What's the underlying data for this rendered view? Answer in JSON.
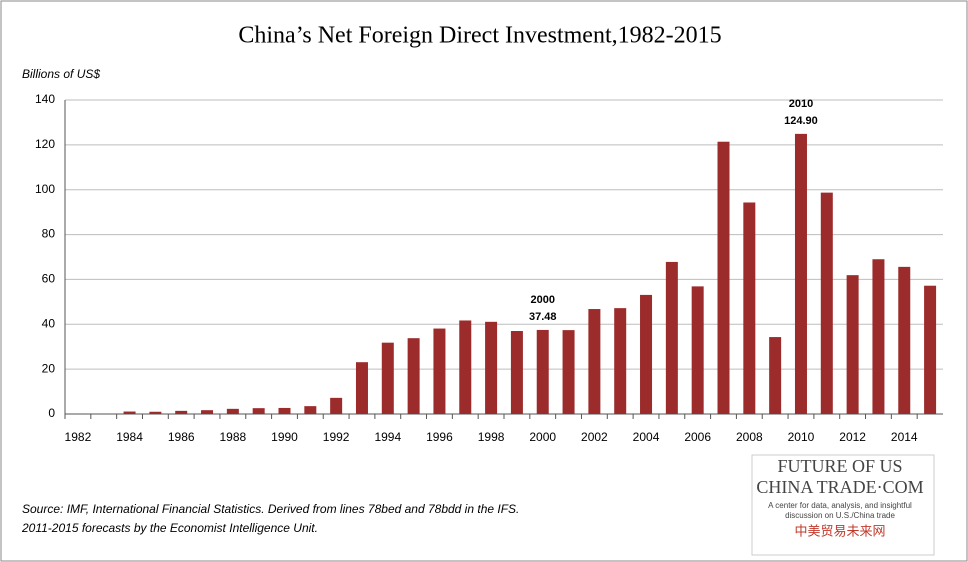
{
  "chart_data": {
    "type": "bar",
    "title": "China’s Net Foreign Direct Investment,1982-2015",
    "y_label": "Billions of US$",
    "categories": [
      "1982",
      null,
      "1984",
      null,
      "1986",
      null,
      "1988",
      null,
      "1990",
      null,
      "1992",
      null,
      "1994",
      null,
      "1996",
      null,
      "1998",
      null,
      "2000",
      null,
      "2002",
      null,
      "2004",
      null,
      "2006",
      null,
      "2008",
      null,
      "2010",
      null,
      "2012",
      null,
      "2014",
      null
    ],
    "values": [
      0,
      0,
      1.1,
      1.0,
      1.4,
      1.7,
      2.3,
      2.6,
      2.7,
      3.5,
      7.2,
      23.1,
      31.8,
      33.8,
      38.1,
      41.7,
      41.1,
      37.0,
      37.48,
      37.4,
      46.8,
      47.2,
      53.1,
      67.8,
      56.9,
      121.4,
      94.3,
      34.3,
      124.9,
      98.7,
      61.9,
      69.0,
      65.6,
      57.2
    ],
    "value_labels": [
      null,
      null,
      null,
      null,
      null,
      null,
      null,
      null,
      null,
      null,
      null,
      null,
      null,
      null,
      null,
      null,
      null,
      null,
      "37.48",
      null,
      null,
      null,
      null,
      null,
      null,
      null,
      null,
      null,
      "124.90",
      null,
      null,
      null,
      null,
      null
    ],
    "color": "#9c2b2b",
    "ylim": [
      0,
      140
    ],
    "yticks": [
      0,
      20,
      40,
      60,
      80,
      100,
      120,
      140
    ],
    "grid": true,
    "source": [
      "Source:  IMF, International Financial Statistics. Derived from lines 78bed and 78bdd in the IFS.",
      "2011-2015  forecasts by the Economist Intelligence Unit."
    ],
    "logo": {
      "line1": "FUTURE OF US",
      "line2": "CHINA TRADE·COM",
      "tagline": [
        "A center for data, analysis, and insightful",
        "discussion on U.S./China trade"
      ],
      "chinese": "中美贸易未来网"
    }
  }
}
